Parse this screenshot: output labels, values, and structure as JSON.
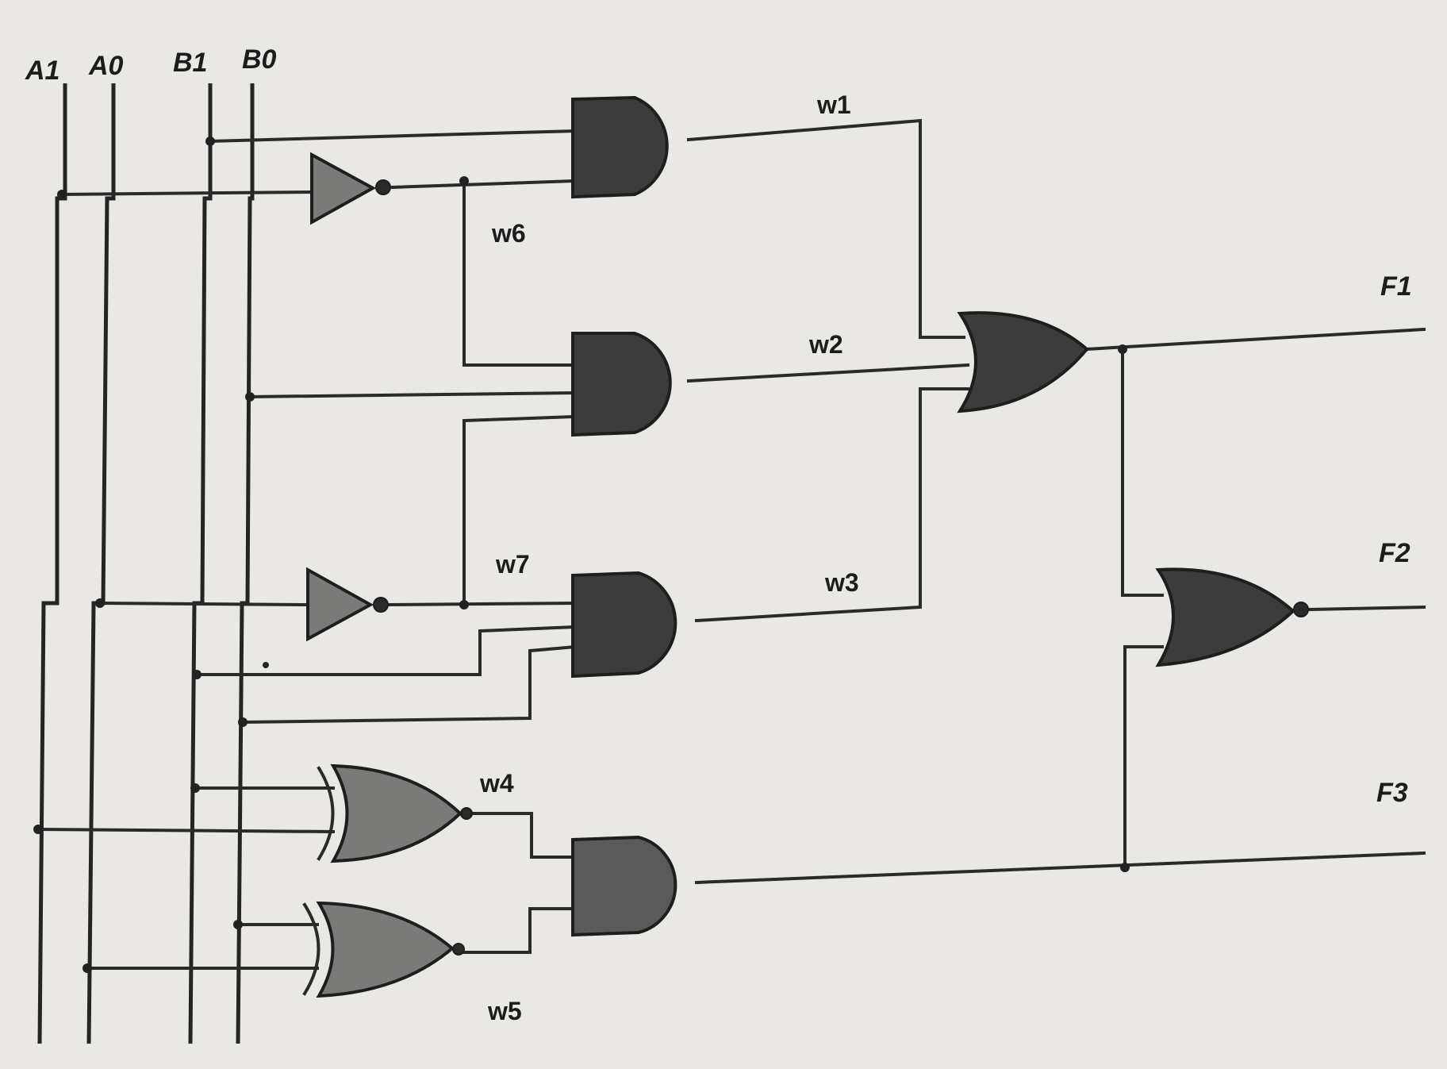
{
  "inputs": [
    {
      "id": "A1",
      "label": "A1"
    },
    {
      "id": "A0",
      "label": "A0"
    },
    {
      "id": "B1",
      "label": "B1"
    },
    {
      "id": "B0",
      "label": "B0"
    }
  ],
  "wires": {
    "w1": "w1",
    "w2": "w2",
    "w3": "w3",
    "w4": "w4",
    "w5": "w5",
    "w6": "w6",
    "w7": "w7"
  },
  "outputs": [
    {
      "id": "F1",
      "label": "F1"
    },
    {
      "id": "F2",
      "label": "F2"
    },
    {
      "id": "F3",
      "label": "F3"
    }
  ],
  "gates": [
    {
      "id": "not1",
      "type": "NOT",
      "output": "w6"
    },
    {
      "id": "not2",
      "type": "NOT",
      "output": "w7"
    },
    {
      "id": "and1",
      "type": "AND",
      "output": "w1"
    },
    {
      "id": "and2",
      "type": "AND",
      "output": "w2"
    },
    {
      "id": "and3",
      "type": "AND",
      "output": "w3"
    },
    {
      "id": "xnor1",
      "type": "XNOR",
      "output": "w4"
    },
    {
      "id": "xnor2",
      "type": "XNOR",
      "output": "w5"
    },
    {
      "id": "and4",
      "type": "AND",
      "output": "F3"
    },
    {
      "id": "or1",
      "type": "OR",
      "output": "F1"
    },
    {
      "id": "nor1",
      "type": "NOR",
      "output": "F2"
    }
  ]
}
